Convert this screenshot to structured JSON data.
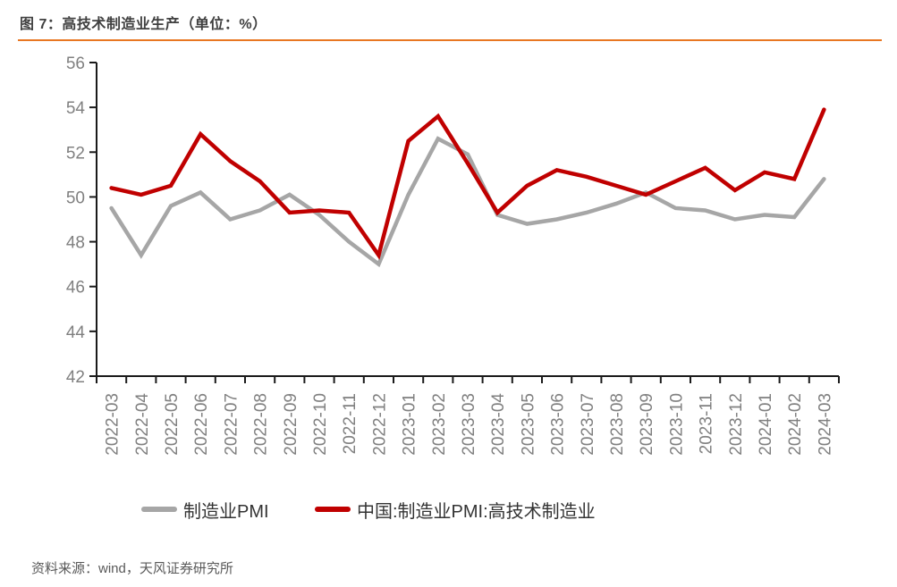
{
  "title": "图 7：高技术制造业生产（单位：%）",
  "source": "资料来源：wind，天风证券研究所",
  "accent_color": "#E87722",
  "chart_data": {
    "type": "line",
    "title": "图 7：高技术制造业生产（单位：%）",
    "categories": [
      "2022-03",
      "2022-04",
      "2022-05",
      "2022-06",
      "2022-07",
      "2022-08",
      "2022-09",
      "2022-10",
      "2022-11",
      "2022-12",
      "2023-01",
      "2023-02",
      "2023-03",
      "2023-04",
      "2023-05",
      "2023-06",
      "2023-07",
      "2023-08",
      "2023-09",
      "2023-10",
      "2023-11",
      "2023-12",
      "2024-01",
      "2024-02",
      "2024-03"
    ],
    "series": [
      {
        "name": "制造业PMI",
        "color": "#A6A6A6",
        "values": [
          49.5,
          47.4,
          49.6,
          50.2,
          49.0,
          49.4,
          50.1,
          49.2,
          48.0,
          47.0,
          50.1,
          52.6,
          51.9,
          49.2,
          48.8,
          49.0,
          49.3,
          49.7,
          50.2,
          49.5,
          49.4,
          49.0,
          49.2,
          49.1,
          50.8
        ]
      },
      {
        "name": "中国:制造业PMI:高技术制造业",
        "color": "#C00000",
        "values": [
          50.4,
          50.1,
          50.5,
          52.8,
          51.6,
          50.7,
          49.3,
          49.4,
          49.3,
          47.4,
          52.5,
          53.6,
          51.5,
          49.3,
          50.5,
          51.2,
          50.9,
          50.5,
          50.1,
          50.7,
          51.3,
          50.3,
          51.1,
          50.8,
          53.9
        ]
      }
    ],
    "xlabel": "",
    "ylabel": "",
    "ylim": [
      42,
      56
    ],
    "ytick_step": 2,
    "grid": false,
    "legend_position": "bottom",
    "axis_color": "#1a1a1a",
    "tick_label_color": "#808080"
  }
}
